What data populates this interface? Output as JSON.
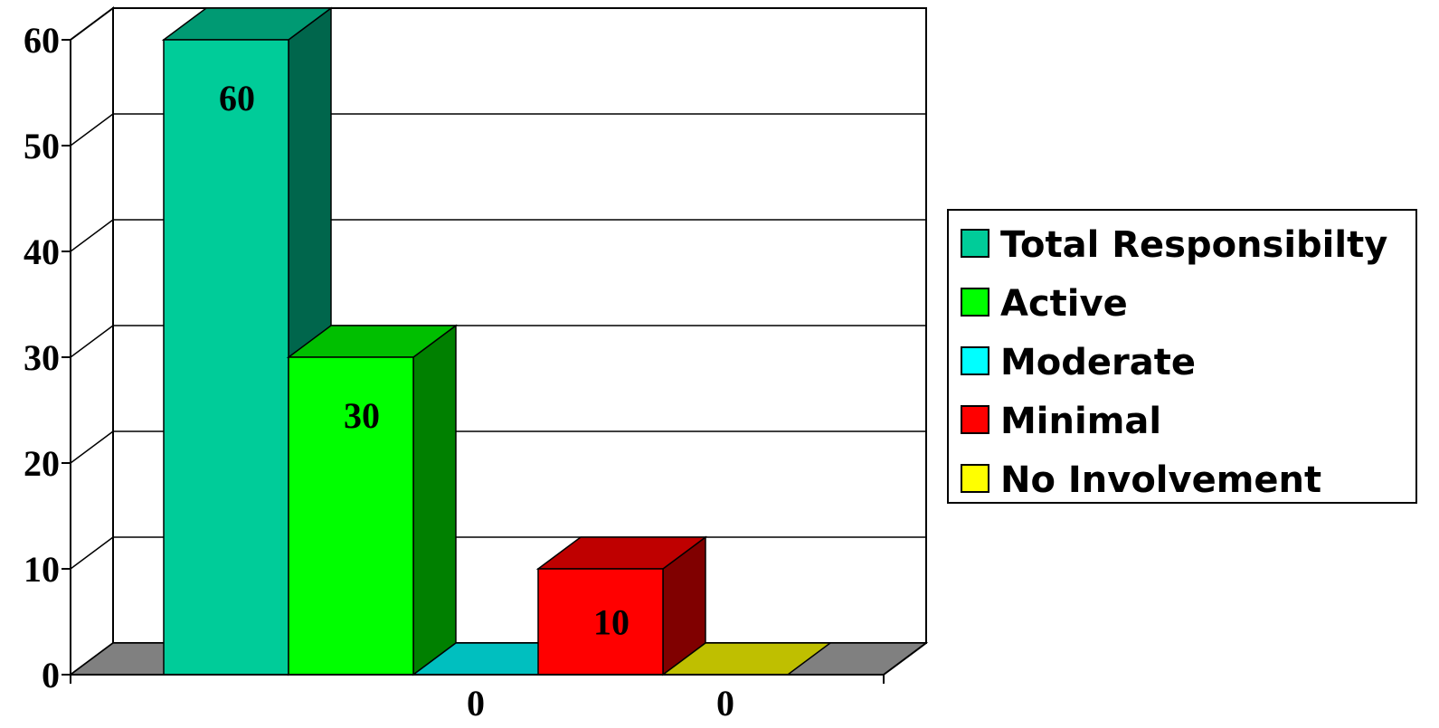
{
  "chart_data": {
    "type": "bar",
    "style": "3d",
    "categories": [
      "Total Responsibilty",
      "Active",
      "Moderate",
      "Minimal",
      "No Involvement"
    ],
    "values": [
      60,
      30,
      0,
      10,
      0
    ],
    "data_labels": [
      "60",
      "30",
      "",
      "10",
      ""
    ],
    "below_axis_labels": [
      "0",
      "0"
    ],
    "ylim": [
      0,
      60
    ],
    "yticks": [
      "0",
      "10",
      "20",
      "30",
      "40",
      "50",
      "60"
    ],
    "grid": true,
    "legend_position": "right",
    "title": "",
    "xlabel": "",
    "ylabel": ""
  },
  "legend": {
    "items": [
      {
        "label": "Total Responsibilty",
        "color": "#00CC99"
      },
      {
        "label": "Active",
        "color": "#00FF00"
      },
      {
        "label": "Moderate",
        "color": "#00FFFF"
      },
      {
        "label": "Minimal",
        "color": "#FF0000"
      },
      {
        "label": "No Involvement",
        "color": "#FFFF00"
      }
    ]
  },
  "colors": {
    "front": [
      "#00CC99",
      "#00FF00",
      "#00FFFF",
      "#FF0000",
      "#FFFF00"
    ],
    "top": [
      "#009A73",
      "#00BF00",
      "#00BFBF",
      "#BF0000",
      "#BFBF00"
    ],
    "side": [
      "#00664C",
      "#008000",
      "#008080",
      "#800000",
      "#808000"
    ],
    "floor": "#808080"
  }
}
